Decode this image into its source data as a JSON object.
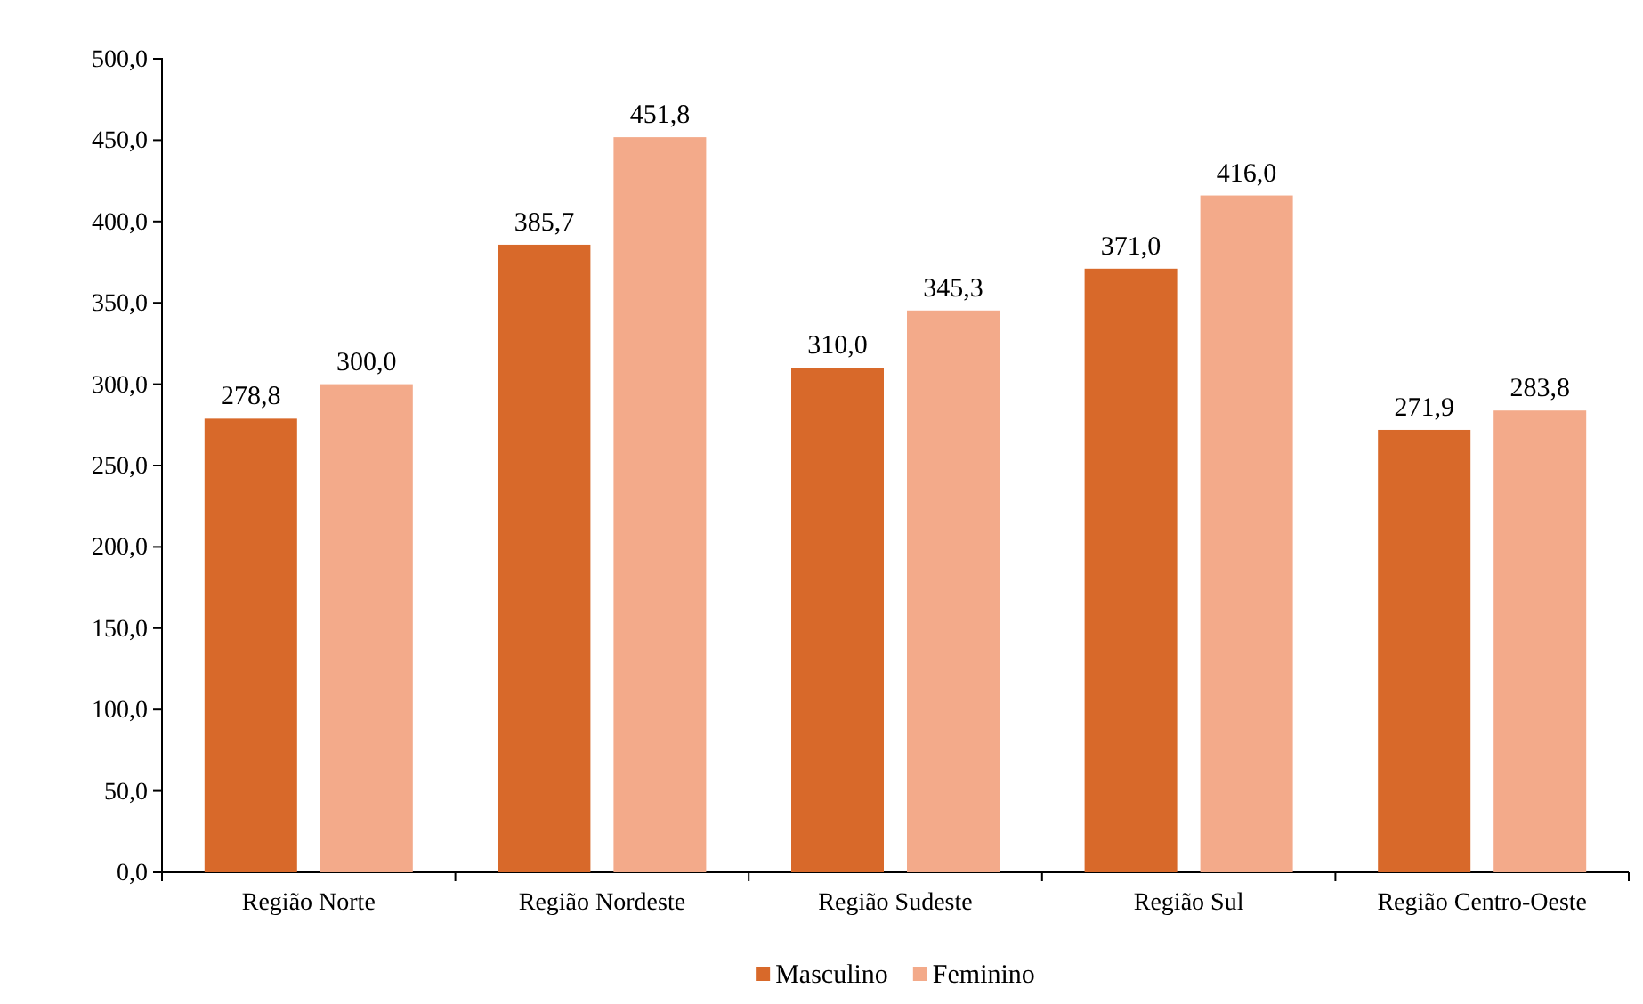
{
  "chart_data": {
    "type": "bar",
    "categories": [
      "Região Norte",
      "Região Nordeste",
      "Região Sudeste",
      "Região Sul",
      "Região Centro-Oeste"
    ],
    "series": [
      {
        "name": "Masculino",
        "color": "#d8692a",
        "values": [
          278.8,
          385.7,
          310.0,
          371.0,
          271.9
        ],
        "value_labels": [
          "278,8",
          "385,7",
          "310,0",
          "371,0",
          "271,9"
        ]
      },
      {
        "name": "Feminino",
        "color": "#f3aa8a",
        "values": [
          300.0,
          451.8,
          345.3,
          416.0,
          283.8
        ],
        "value_labels": [
          "300,0",
          "451,8",
          "345,3",
          "416,0",
          "283,8"
        ]
      }
    ],
    "ylim": [
      0,
      500
    ],
    "yticks": [
      {
        "value": 0,
        "label": "0,0"
      },
      {
        "value": 50,
        "label": "50,0"
      },
      {
        "value": 100,
        "label": "100,0"
      },
      {
        "value": 150,
        "label": "150,0"
      },
      {
        "value": 200,
        "label": "200,0"
      },
      {
        "value": 250,
        "label": "250,0"
      },
      {
        "value": 300,
        "label": "300,0"
      },
      {
        "value": 350,
        "label": "350,0"
      },
      {
        "value": 400,
        "label": "400,0"
      },
      {
        "value": 450,
        "label": "450,0"
      },
      {
        "value": 500,
        "label": "500,0"
      }
    ],
    "grid": false,
    "legend": "bottom"
  }
}
